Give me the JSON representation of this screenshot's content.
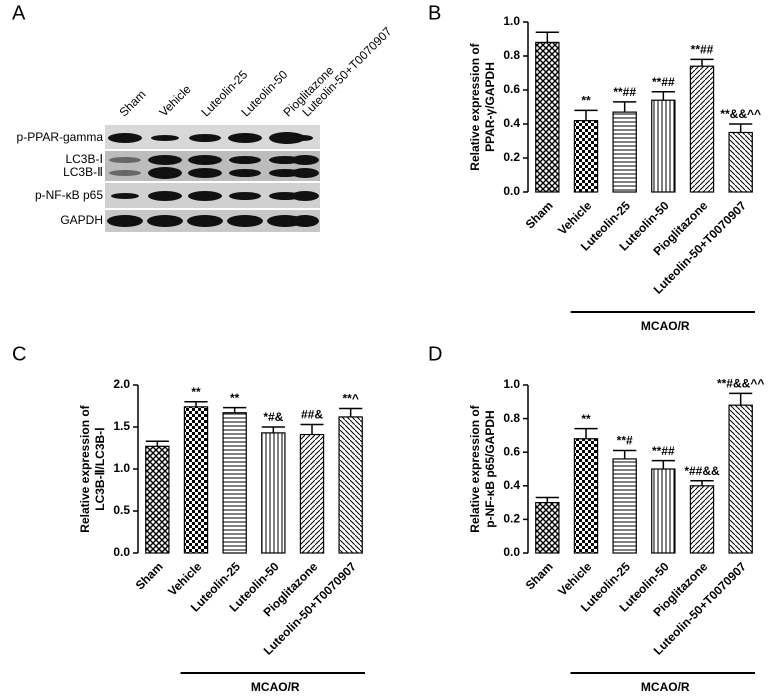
{
  "blot": {
    "panel_label": "A",
    "lanes": [
      "Sham",
      "Vehicle",
      "Luteolin-25",
      "Luteolin-50",
      "Pioglitazone",
      "Luteolin-50+T0070907"
    ],
    "rows": [
      "p-PPAR-gamma",
      "LC3B-Ⅰ",
      "LC3B-Ⅱ",
      "p-NF-κB p65",
      "GAPDH"
    ]
  },
  "chart_data": [
    {
      "type": "bar",
      "panel_label": "B",
      "ylabel": [
        "Relative expression of",
        "PPAR-γ/GAPDH"
      ],
      "categories": [
        "Sham",
        "Vehicle",
        "Luteolin-25",
        "Luteolin-50",
        "Pioglitazone",
        "Luteolin-50+T0070907"
      ],
      "values": [
        0.88,
        0.42,
        0.47,
        0.54,
        0.74,
        0.35
      ],
      "errors": [
        0.06,
        0.06,
        0.06,
        0.05,
        0.04,
        0.05
      ],
      "annotations": [
        null,
        "**",
        "**##",
        "**##",
        "**##",
        "**&&^^"
      ],
      "group_label": "MCAO/R",
      "ylim": [
        0,
        1
      ],
      "yticks": [
        {
          "value": 0,
          "label": "0.0"
        },
        {
          "value": 0.2,
          "label": "0.2"
        },
        {
          "value": 0.4,
          "label": "0.4"
        },
        {
          "value": 0.6,
          "label": "0.6"
        },
        {
          "value": 0.8,
          "label": "0.8"
        },
        {
          "value": 1,
          "label": "1.0"
        }
      ]
    },
    {
      "type": "bar",
      "panel_label": "C",
      "ylabel": [
        "Relative expression of",
        "LC3B-Ⅱ/LC3B-Ⅰ"
      ],
      "categories": [
        "Sham",
        "Vehicle",
        "Luteolin-25",
        "Luteolin-50",
        "Pioglitazone",
        "Luteolin-50+T0070907"
      ],
      "values": [
        1.27,
        1.74,
        1.67,
        1.43,
        1.41,
        1.62
      ],
      "errors": [
        0.06,
        0.06,
        0.06,
        0.07,
        0.12,
        0.1
      ],
      "annotations": [
        null,
        "**",
        "**",
        "*#&",
        "##&",
        "**^"
      ],
      "group_label": "MCAO/R",
      "ylim": [
        0,
        2
      ],
      "yticks": [
        {
          "value": 0,
          "label": "0.0"
        },
        {
          "value": 0.5,
          "label": "0.5"
        },
        {
          "value": 1,
          "label": "1.0"
        },
        {
          "value": 1.5,
          "label": "1.5"
        },
        {
          "value": 2,
          "label": "2.0"
        }
      ]
    },
    {
      "type": "bar",
      "panel_label": "D",
      "ylabel": [
        "Relative expression of",
        "p-NF-κB p65/GAPDH"
      ],
      "categories": [
        "Sham",
        "Vehicle",
        "Luteolin-25",
        "Luteolin-50",
        "Pioglitazone",
        "Luteolin-50+T0070907"
      ],
      "values": [
        0.3,
        0.68,
        0.56,
        0.5,
        0.4,
        0.88
      ],
      "errors": [
        0.03,
        0.06,
        0.05,
        0.05,
        0.03,
        0.07
      ],
      "annotations": [
        null,
        "**",
        "**#",
        "**##",
        "*##&&",
        "**#&&^^"
      ],
      "group_label": "MCAO/R",
      "ylim": [
        0,
        1
      ],
      "yticks": [
        {
          "value": 0,
          "label": "0.0"
        },
        {
          "value": 0.2,
          "label": "0.2"
        },
        {
          "value": 0.4,
          "label": "0.4"
        },
        {
          "value": 0.6,
          "label": "0.6"
        },
        {
          "value": 0.8,
          "label": "0.8"
        },
        {
          "value": 1,
          "label": "1.0"
        }
      ]
    }
  ]
}
